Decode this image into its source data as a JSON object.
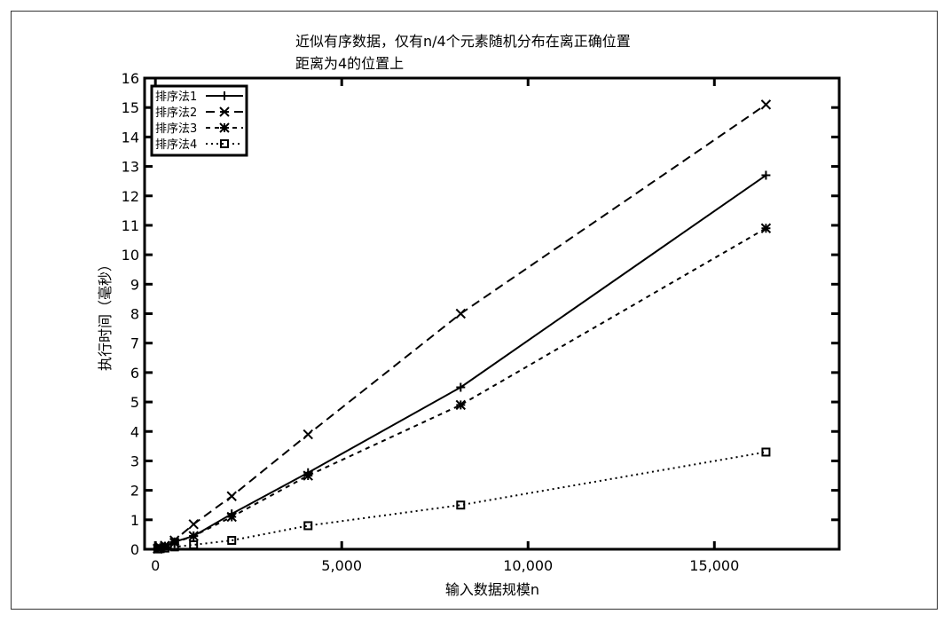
{
  "chart_data": {
    "type": "line",
    "title": [
      "近似有序数据，仅有n/4个元素随机分布在离正确位置",
      "距离为4的位置上"
    ],
    "xlabel": "输入数据规模n",
    "ylabel": "执行时间（毫秒）",
    "xlim": [
      -290,
      18350
    ],
    "ylim": [
      0,
      16
    ],
    "xticks": [
      0,
      5000,
      10000,
      15000
    ],
    "xtick_labels": [
      "0",
      "5,000",
      "10,000",
      "15,000"
    ],
    "yticks": [
      0,
      1,
      2,
      3,
      4,
      5,
      6,
      7,
      8,
      9,
      10,
      11,
      12,
      13,
      14,
      15,
      16
    ],
    "grid": false,
    "legend_position": "top-left",
    "x": [
      64,
      128,
      256,
      512,
      1024,
      2048,
      4096,
      8192,
      16384
    ],
    "series": [
      {
        "name": "排序法1",
        "marker": "plus",
        "dash": "solid",
        "values": [
          0.02,
          0.05,
          0.1,
          0.25,
          0.45,
          1.2,
          2.6,
          5.5,
          12.7
        ]
      },
      {
        "name": "排序法2",
        "marker": "x",
        "dash": "long",
        "values": [
          0.02,
          0.06,
          0.12,
          0.3,
          0.85,
          1.8,
          3.9,
          8.0,
          15.1
        ]
      },
      {
        "name": "排序法3",
        "marker": "star",
        "dash": "short",
        "values": [
          0.02,
          0.05,
          0.1,
          0.22,
          0.45,
          1.1,
          2.5,
          4.9,
          10.9
        ]
      },
      {
        "name": "排序法4",
        "marker": "square",
        "dash": "dot",
        "values": [
          0.01,
          0.02,
          0.04,
          0.08,
          0.15,
          0.3,
          0.8,
          1.5,
          3.3
        ]
      }
    ]
  }
}
